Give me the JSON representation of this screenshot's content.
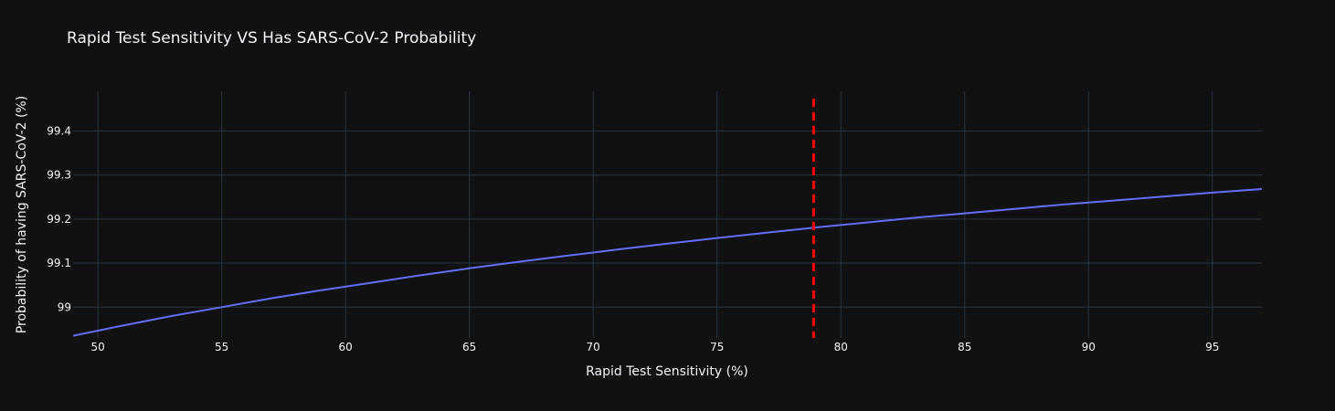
{
  "chart_data": {
    "type": "line",
    "title": "Rapid Test Sensitivity VS Has SARS-CoV-2 Probability",
    "xlabel": "Rapid Test Sensitivity (%)",
    "ylabel": "Probability of having SARS-CoV-2 (%)",
    "xlim": [
      49,
      97
    ],
    "ylim": [
      98.93,
      99.49
    ],
    "x_ticks": [
      50,
      55,
      60,
      65,
      70,
      75,
      80,
      85,
      90,
      95
    ],
    "y_ticks": [
      99,
      99.1,
      99.2,
      99.3,
      99.4
    ],
    "y_tick_labels": [
      "99",
      "99.1",
      "99.2",
      "99.3",
      "99.4"
    ],
    "grid": true,
    "series": [
      {
        "color": "#636efa",
        "x": [
          49,
          51,
          53,
          55,
          57,
          59,
          61,
          63,
          65,
          67,
          69,
          71,
          73,
          75,
          77,
          79,
          81,
          83,
          85,
          87,
          89,
          91,
          93,
          95,
          97
        ],
        "y": [
          98.935,
          98.958,
          98.98,
          99.0,
          99.02,
          99.038,
          99.055,
          99.072,
          99.088,
          99.103,
          99.117,
          99.131,
          99.144,
          99.157,
          99.169,
          99.181,
          99.192,
          99.203,
          99.213,
          99.223,
          99.233,
          99.242,
          99.251,
          99.26,
          99.268
        ]
      }
    ],
    "vline": {
      "x": 78.9,
      "color": "#ff0000",
      "style": "dash"
    }
  }
}
